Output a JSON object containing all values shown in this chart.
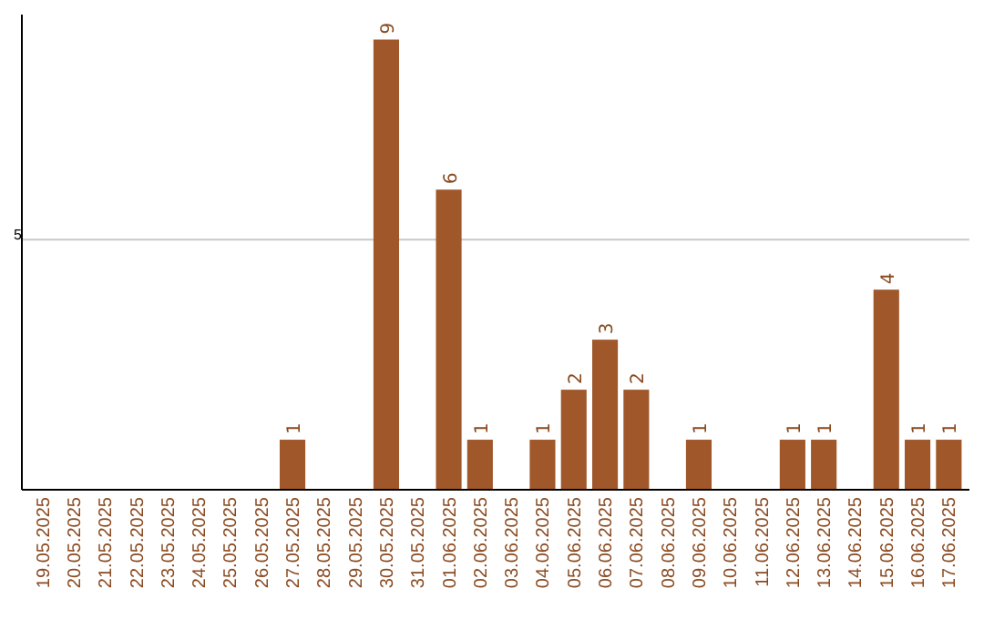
{
  "chart_data": {
    "type": "bar",
    "categories": [
      "19.05.2025",
      "20.05.2025",
      "21.05.2025",
      "22.05.2025",
      "23.05.2025",
      "24.05.2025",
      "25.05.2025",
      "26.05.2025",
      "27.05.2025",
      "28.05.2025",
      "29.05.2025",
      "30.05.2025",
      "31.05.2025",
      "01.06.2025",
      "02.06.2025",
      "03.06.2025",
      "04.06.2025",
      "05.06.2025",
      "06.06.2025",
      "07.06.2025",
      "08.06.2025",
      "09.06.2025",
      "10.06.2025",
      "11.06.2025",
      "12.06.2025",
      "13.06.2025",
      "14.06.2025",
      "15.06.2025",
      "16.06.2025",
      "17.06.2025"
    ],
    "values": [
      0,
      0,
      0,
      0,
      0,
      0,
      0,
      0,
      1,
      0,
      0,
      9,
      0,
      6,
      1,
      0,
      1,
      2,
      3,
      2,
      0,
      1,
      0,
      0,
      1,
      1,
      0,
      4,
      1,
      1
    ],
    "value_labels": [
      null,
      null,
      null,
      null,
      null,
      null,
      null,
      null,
      "1",
      null,
      null,
      "9",
      null,
      "6",
      "1",
      null,
      "1",
      "2",
      "3",
      "2",
      null,
      "1",
      null,
      null,
      "1",
      "1",
      null,
      "4",
      "1",
      "1"
    ],
    "color": "#a0572a",
    "ylim": [
      0,
      9.5
    ],
    "yticks": [
      5
    ],
    "grid": "y"
  }
}
